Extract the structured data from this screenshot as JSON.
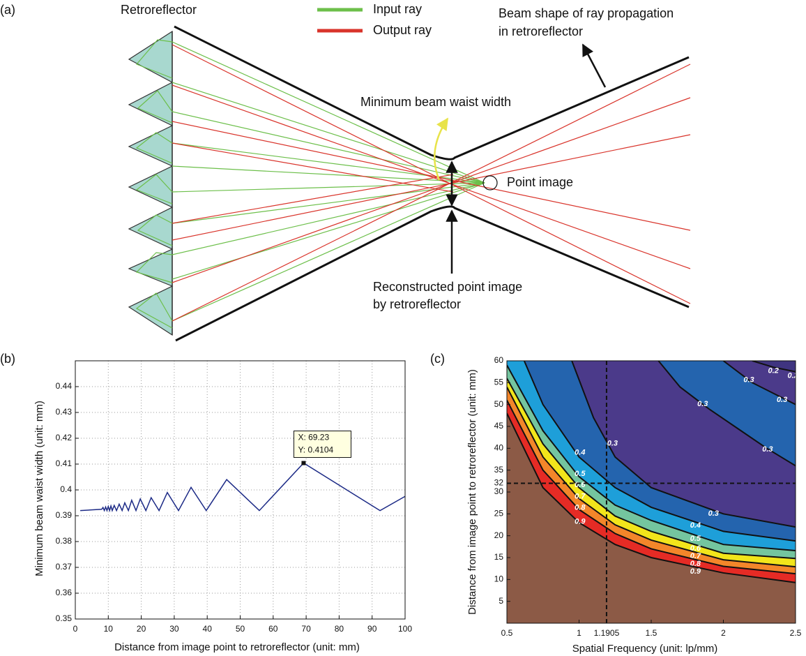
{
  "panel_labels": [
    "(a)",
    "(b)",
    "(c)"
  ],
  "diagram": {
    "retroreflector": "Retroreflector",
    "legend": [
      {
        "name": "Input ray",
        "color": "#6cbf4a"
      },
      {
        "name": "Output ray",
        "color": "#d9342b"
      }
    ],
    "beam_shape": [
      "Beam shape of ray propagation",
      "in retroreflector"
    ],
    "waist": "Minimum beam waist width",
    "point_image": "Point image",
    "reconstructed": [
      "Reconstructed point image",
      "by retroreflector"
    ]
  },
  "chart_data": [
    {
      "type": "line",
      "x_label": "Distance from image point to retroreflector (unit: mm)",
      "y_label": "Minimum beam waist width (unit: mm)",
      "x": [
        1.5,
        8,
        8.4,
        8.8,
        9.2,
        9.6,
        10,
        10.4,
        10.8,
        11.2,
        11.8,
        12.5,
        13.3,
        14.2,
        15,
        16.1,
        17.1,
        18.4,
        19.7,
        21.4,
        23,
        25.4,
        27.9,
        31.3,
        35.1,
        39.7,
        45.9,
        55.8,
        69.23,
        92.4,
        100
      ],
      "series": [
        {
          "color": "#1c2a86",
          "values": [
            0.392,
            0.3925,
            0.3932,
            0.392,
            0.3934,
            0.392,
            0.3936,
            0.392,
            0.3938,
            0.392,
            0.394,
            0.392,
            0.3945,
            0.392,
            0.395,
            0.392,
            0.396,
            0.392,
            0.3965,
            0.392,
            0.397,
            0.392,
            0.399,
            0.392,
            0.401,
            0.392,
            0.404,
            0.392,
            0.4104,
            0.392,
            0.3975
          ]
        }
      ],
      "xlim": [
        0,
        100
      ],
      "ylim": [
        0.35,
        0.45
      ],
      "xticks": [
        0,
        10,
        20,
        30,
        40,
        50,
        60,
        70,
        80,
        90,
        100
      ],
      "yticks": [
        0.35,
        0.36,
        0.37,
        0.38,
        0.39,
        0.4,
        0.41,
        0.42,
        0.43,
        0.44
      ],
      "grid": true,
      "datatip": {
        "x": 69.23,
        "y": 0.4104,
        "lines": [
          "X: 69.23",
          "Y: 0.4104"
        ]
      }
    },
    {
      "type": "contour",
      "x_label": "Spatial Frequency (unit: lp/mm)",
      "y_label": "Distance from image point to retroreflector (unit: mm)",
      "xlim": [
        0.5,
        2.5
      ],
      "ylim": [
        0,
        60
      ],
      "xticks": [
        0.5,
        1,
        1.1905,
        1.5,
        2,
        2.5
      ],
      "yticks": [
        5,
        10,
        15,
        20,
        25,
        30,
        32,
        35,
        40,
        45,
        50,
        55,
        60
      ],
      "background": "#4b3a8a",
      "crosshair": {
        "x": 1.1905,
        "y": 32
      },
      "contours": [
        {
          "level": 0.3,
          "color": "#2464ae",
          "region": "below",
          "x": [
            0.95,
            1.1,
            1.25,
            1.5,
            2,
            2.5
          ],
          "y": [
            60,
            47,
            38,
            31,
            25,
            22
          ]
        },
        {
          "level": 0.4,
          "color": "#1e9fd9",
          "region": "below",
          "x": [
            0.62,
            0.75,
            1,
            1.25,
            1.5,
            2,
            2.5
          ],
          "y": [
            60,
            50,
            38,
            31,
            26.5,
            21,
            18.8
          ]
        },
        {
          "level": 0.5,
          "color": "#74c59f",
          "region": "below",
          "x": [
            0.5,
            0.75,
            1,
            1.25,
            1.5,
            2,
            2.5
          ],
          "y": [
            59,
            44,
            33.5,
            27,
            23.5,
            18,
            16.6
          ]
        },
        {
          "level": 0.6,
          "color": "#f2e51b",
          "region": "below",
          "x": [
            0.5,
            0.75,
            1,
            1.25,
            1.5,
            2,
            2.5
          ],
          "y": [
            56,
            41,
            31,
            24.5,
            21,
            16,
            14.8
          ]
        },
        {
          "level": 0.7,
          "color": "#f3862a",
          "region": "below",
          "x": [
            0.5,
            0.75,
            1,
            1.25,
            1.5,
            2,
            2.5
          ],
          "y": [
            54,
            38,
            28.5,
            22.5,
            19,
            14.5,
            12.9
          ]
        },
        {
          "level": 0.8,
          "color": "#e52b25",
          "region": "below",
          "x": [
            0.5,
            0.75,
            1,
            1.25,
            1.5,
            2,
            2.5
          ],
          "y": [
            51,
            35,
            26,
            20.5,
            17,
            13,
            11.3
          ]
        },
        {
          "level": 0.9,
          "color": "#8c5a46",
          "region": "below",
          "x": [
            0.5,
            0.75,
            1,
            1.25,
            1.5,
            2,
            2.5
          ],
          "y": [
            48,
            31,
            23,
            18,
            15,
            11.5,
            9.3
          ]
        },
        {
          "level": 0.3,
          "color": "#2464ae",
          "region": "above",
          "x": [
            1.55,
            1.7,
            1.9,
            2.1,
            2.3,
            2.5
          ],
          "y": [
            60,
            54,
            49,
            44.5,
            40,
            36
          ]
        },
        {
          "level": 0.3,
          "color": "#4b3a8a",
          "region": "above",
          "x": [
            2.0,
            2.2,
            2.5
          ],
          "y": [
            60,
            55,
            50
          ]
        },
        {
          "level": 0.2,
          "color": "#3f3480",
          "region": "above",
          "x": [
            2.2,
            2.35,
            2.5
          ],
          "y": [
            60,
            58.5,
            57.5
          ]
        }
      ]
    }
  ]
}
